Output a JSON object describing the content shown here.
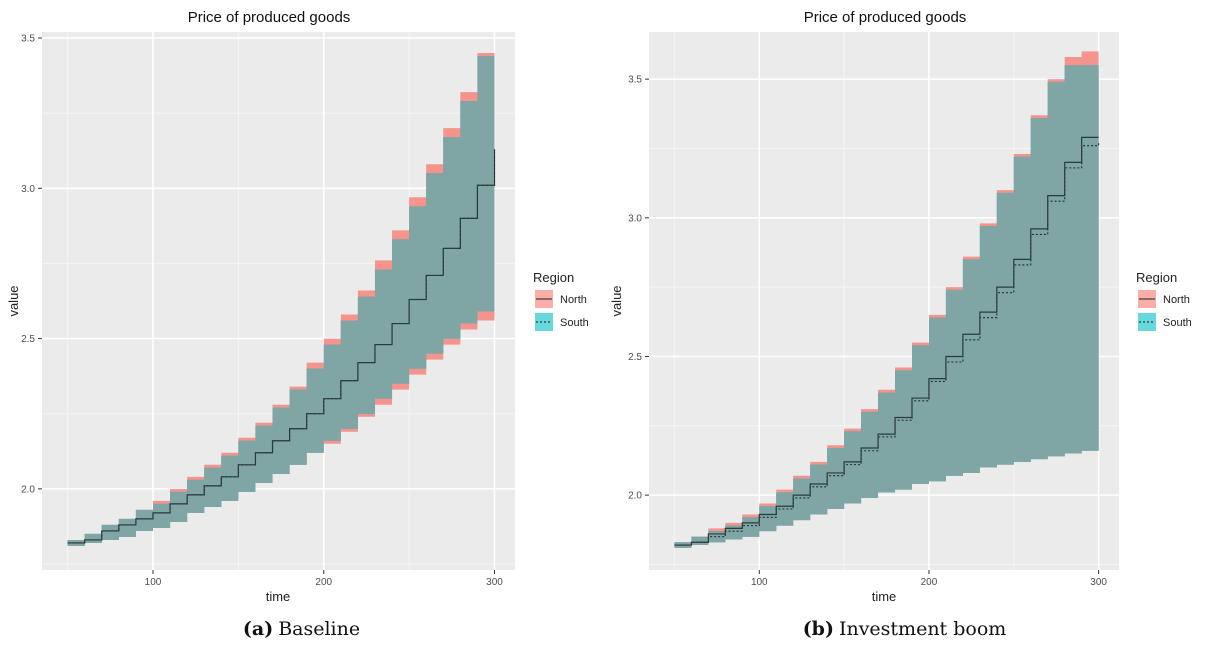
{
  "figure": {
    "panels": [
      {
        "caption_tag": "(a)",
        "caption_text": "Baseline"
      },
      {
        "caption_tag": "(b)",
        "caption_text": "Investment boom"
      }
    ]
  },
  "chart_data": [
    {
      "type": "area",
      "title": "Price of produced goods",
      "xlabel": "time",
      "ylabel": "value",
      "xlim": [
        35,
        312
      ],
      "ylim": [
        1.73,
        3.52
      ],
      "x_ticks": [
        100,
        200,
        300
      ],
      "y_ticks": [
        2.0,
        2.5,
        3.0,
        3.5
      ],
      "grid": true,
      "legend": {
        "title": "Region",
        "placement": "right",
        "entries": [
          "North",
          "South"
        ]
      },
      "colors": {
        "North": "#F8766D",
        "South": "#00BFC4",
        "overlap": "#7FA5A5",
        "panel_bg": "#EBEBEB"
      },
      "x": [
        50,
        60,
        70,
        80,
        90,
        100,
        110,
        120,
        130,
        140,
        150,
        160,
        170,
        180,
        190,
        200,
        210,
        220,
        230,
        240,
        250,
        260,
        270,
        280,
        290,
        300
      ],
      "series": [
        {
          "name": "North",
          "line": "solid",
          "mean": [
            1.82,
            1.83,
            1.86,
            1.88,
            1.9,
            1.92,
            1.95,
            1.98,
            2.01,
            2.04,
            2.08,
            2.12,
            2.16,
            2.2,
            2.25,
            2.3,
            2.36,
            2.42,
            2.48,
            2.55,
            2.63,
            2.71,
            2.8,
            2.9,
            3.01,
            3.13
          ],
          "upper": [
            1.83,
            1.85,
            1.88,
            1.9,
            1.93,
            1.96,
            2.0,
            2.04,
            2.08,
            2.12,
            2.17,
            2.22,
            2.28,
            2.34,
            2.42,
            2.5,
            2.58,
            2.66,
            2.76,
            2.86,
            2.97,
            3.08,
            3.2,
            3.32,
            3.45,
            3.46
          ],
          "lower": [
            1.81,
            1.82,
            1.83,
            1.84,
            1.86,
            1.87,
            1.89,
            1.92,
            1.94,
            1.96,
            1.99,
            2.02,
            2.05,
            2.08,
            2.12,
            2.15,
            2.19,
            2.24,
            2.28,
            2.33,
            2.38,
            2.43,
            2.48,
            2.53,
            2.56,
            2.58
          ]
        },
        {
          "name": "South",
          "line": "dotted",
          "mean": [
            1.82,
            1.83,
            1.86,
            1.88,
            1.9,
            1.92,
            1.95,
            1.98,
            2.01,
            2.04,
            2.08,
            2.12,
            2.16,
            2.2,
            2.25,
            2.3,
            2.36,
            2.42,
            2.48,
            2.55,
            2.63,
            2.71,
            2.8,
            2.9,
            3.01,
            3.13
          ],
          "upper": [
            1.83,
            1.85,
            1.88,
            1.9,
            1.93,
            1.95,
            1.99,
            2.03,
            2.07,
            2.11,
            2.16,
            2.21,
            2.27,
            2.33,
            2.4,
            2.48,
            2.56,
            2.64,
            2.73,
            2.83,
            2.94,
            3.05,
            3.17,
            3.29,
            3.44,
            3.46
          ],
          "lower": [
            1.81,
            1.82,
            1.83,
            1.84,
            1.86,
            1.87,
            1.89,
            1.92,
            1.94,
            1.96,
            1.99,
            2.02,
            2.05,
            2.08,
            2.12,
            2.16,
            2.2,
            2.25,
            2.3,
            2.35,
            2.4,
            2.45,
            2.5,
            2.55,
            2.59,
            2.6
          ]
        }
      ]
    },
    {
      "type": "area",
      "title": "Price of produced goods",
      "xlabel": "time",
      "ylabel": "value",
      "xlim": [
        35,
        312
      ],
      "ylim": [
        1.73,
        3.67
      ],
      "x_ticks": [
        100,
        200,
        300
      ],
      "y_ticks": [
        2.0,
        2.5,
        3.0,
        3.5
      ],
      "grid": true,
      "legend": {
        "title": "Region",
        "placement": "right",
        "entries": [
          "North",
          "South"
        ]
      },
      "colors": {
        "North": "#F8766D",
        "South": "#00BFC4",
        "overlap": "#7FA5A5",
        "panel_bg": "#EBEBEB"
      },
      "x": [
        50,
        60,
        70,
        80,
        90,
        100,
        110,
        120,
        130,
        140,
        150,
        160,
        170,
        180,
        190,
        200,
        210,
        220,
        230,
        240,
        250,
        260,
        270,
        280,
        290,
        300
      ],
      "series": [
        {
          "name": "North",
          "line": "solid",
          "mean": [
            1.82,
            1.83,
            1.86,
            1.88,
            1.9,
            1.93,
            1.96,
            2.0,
            2.04,
            2.08,
            2.12,
            2.17,
            2.22,
            2.28,
            2.35,
            2.42,
            2.5,
            2.58,
            2.66,
            2.75,
            2.85,
            2.96,
            3.08,
            3.2,
            3.29,
            3.29
          ],
          "upper": [
            1.83,
            1.85,
            1.88,
            1.9,
            1.93,
            1.97,
            2.02,
            2.07,
            2.12,
            2.18,
            2.24,
            2.31,
            2.38,
            2.46,
            2.55,
            2.65,
            2.75,
            2.86,
            2.98,
            3.1,
            3.23,
            3.37,
            3.5,
            3.58,
            3.6,
            3.59
          ],
          "lower": [
            1.81,
            1.82,
            1.83,
            1.84,
            1.85,
            1.87,
            1.89,
            1.91,
            1.93,
            1.95,
            1.97,
            1.99,
            2.01,
            2.02,
            2.04,
            2.05,
            2.07,
            2.08,
            2.1,
            2.11,
            2.12,
            2.13,
            2.14,
            2.15,
            2.16,
            2.17
          ]
        },
        {
          "name": "South",
          "line": "dotted",
          "mean": [
            1.82,
            1.83,
            1.85,
            1.87,
            1.89,
            1.92,
            1.95,
            1.99,
            2.03,
            2.07,
            2.11,
            2.16,
            2.21,
            2.27,
            2.34,
            2.41,
            2.48,
            2.56,
            2.64,
            2.73,
            2.83,
            2.94,
            3.06,
            3.18,
            3.26,
            3.27
          ],
          "upper": [
            1.83,
            1.85,
            1.87,
            1.89,
            1.92,
            1.96,
            2.01,
            2.06,
            2.11,
            2.17,
            2.23,
            2.3,
            2.37,
            2.45,
            2.54,
            2.64,
            2.74,
            2.85,
            2.97,
            3.09,
            3.22,
            3.36,
            3.49,
            3.55,
            3.55,
            3.55
          ],
          "lower": [
            1.81,
            1.82,
            1.83,
            1.84,
            1.85,
            1.87,
            1.89,
            1.91,
            1.93,
            1.95,
            1.97,
            1.99,
            2.01,
            2.02,
            2.04,
            2.05,
            2.07,
            2.08,
            2.1,
            2.11,
            2.12,
            2.13,
            2.14,
            2.15,
            2.16,
            2.17
          ]
        }
      ]
    }
  ]
}
